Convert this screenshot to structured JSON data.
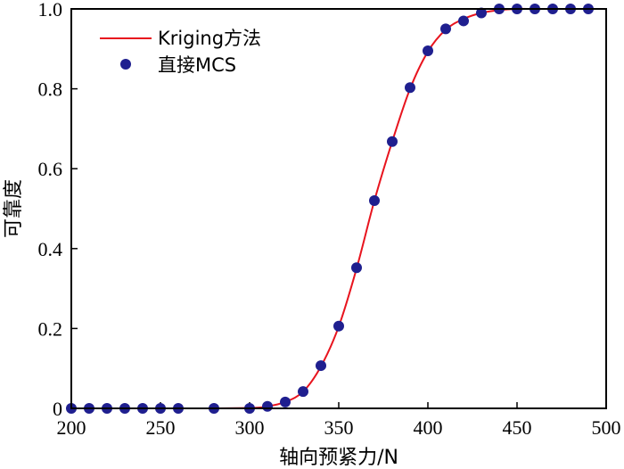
{
  "chart_data": {
    "type": "line",
    "xlabel": "轴向预紧力/N",
    "ylabel": "可靠度",
    "xlim": [
      200,
      500
    ],
    "ylim": [
      0,
      1.0
    ],
    "xticks": [
      "200",
      "250",
      "300",
      "350",
      "400",
      "450",
      "500"
    ],
    "yticks": [
      "0",
      "0.2",
      "0.4",
      "0.6",
      "0.8",
      "1.0"
    ],
    "grid": false,
    "legend_position": "top-left",
    "series": [
      {
        "name": "Kriging方法",
        "kind": "line",
        "color": "#e8141e",
        "x": [
          200,
          260,
          300,
          310,
          320,
          330,
          340,
          350,
          360,
          370,
          380,
          390,
          400,
          410,
          420,
          430,
          440,
          450,
          460,
          480,
          500
        ],
        "y": [
          0,
          0,
          0.001,
          0.005,
          0.016,
          0.042,
          0.105,
          0.205,
          0.35,
          0.52,
          0.668,
          0.8,
          0.893,
          0.948,
          0.975,
          0.99,
          0.997,
          1.0,
          1.0,
          1.0,
          1.0
        ]
      },
      {
        "name": "直接MCS",
        "kind": "scatter",
        "color": "#1f1f8f",
        "x": [
          200,
          210,
          220,
          230,
          240,
          250,
          260,
          280,
          300,
          310,
          320,
          330,
          340,
          350,
          360,
          370,
          380,
          390,
          400,
          410,
          420,
          430,
          440,
          450,
          460,
          470,
          480,
          490
        ],
        "y": [
          0,
          0,
          0,
          0,
          0,
          0,
          0,
          0,
          0,
          0.005,
          0.016,
          0.042,
          0.107,
          0.206,
          0.352,
          0.52,
          0.668,
          0.803,
          0.895,
          0.95,
          0.97,
          0.99,
          1.0,
          1.0,
          1.0,
          1.0,
          1.0,
          1.0
        ]
      }
    ]
  }
}
